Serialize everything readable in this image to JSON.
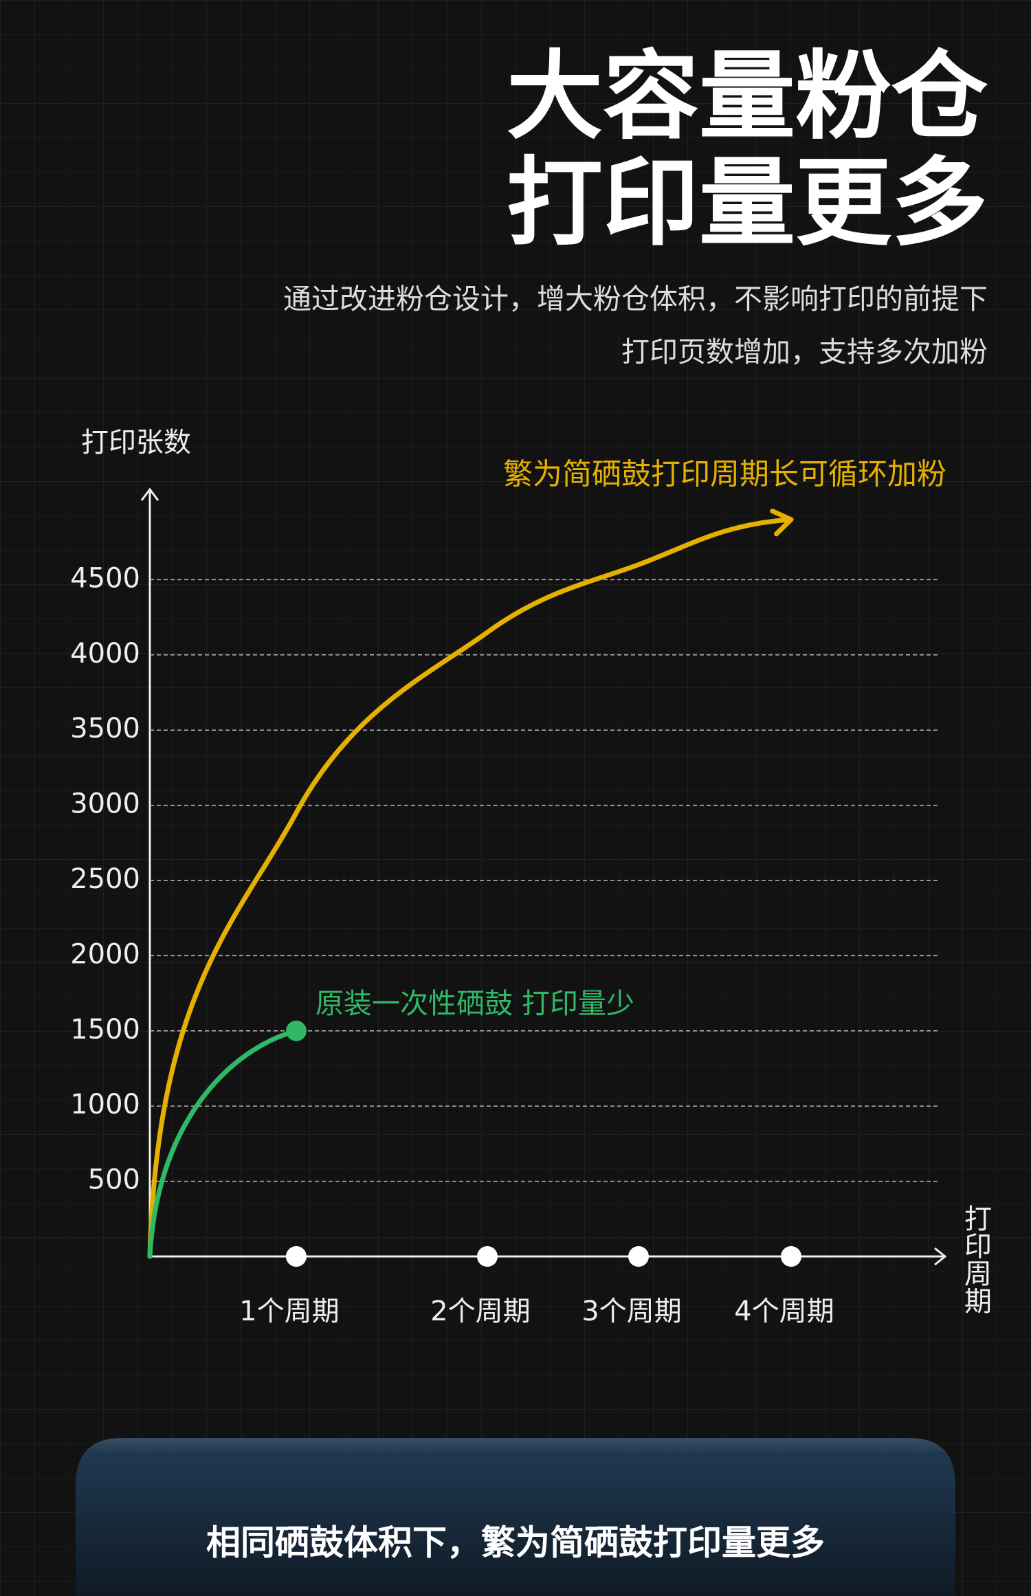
{
  "title_lines": [
    "大容量粉仓",
    "打印量更多"
  ],
  "subtitle_lines": [
    "通过改进粉仓设计，增大粉仓体积，不影响打印的前提下",
    "打印页数增加，支持多次加粉"
  ],
  "chart_data": {
    "type": "line",
    "y_label": "打印张数",
    "x_label": "打印周期",
    "categories": [
      null,
      "1个周期",
      "2个周期",
      "3个周期",
      "4个周期"
    ],
    "series": [
      {
        "name": "繁为简硒鼓打印周期长可循环加粉",
        "color": "#e6b000",
        "values": [
          0,
          2950,
          4150,
          4600,
          4900
        ]
      },
      {
        "name": "原装一次性硒鼓 打印量少",
        "color": "#2fb866",
        "values": [
          0,
          1500,
          null,
          null,
          null
        ]
      }
    ],
    "ylim": [
      0,
      5000
    ],
    "yticks": [
      500,
      1000,
      1500,
      2000,
      2500,
      3000,
      3500,
      4000,
      4500
    ],
    "grid": true
  },
  "footer": "相同硒鼓体积下，繁为简硒鼓打印量更多"
}
